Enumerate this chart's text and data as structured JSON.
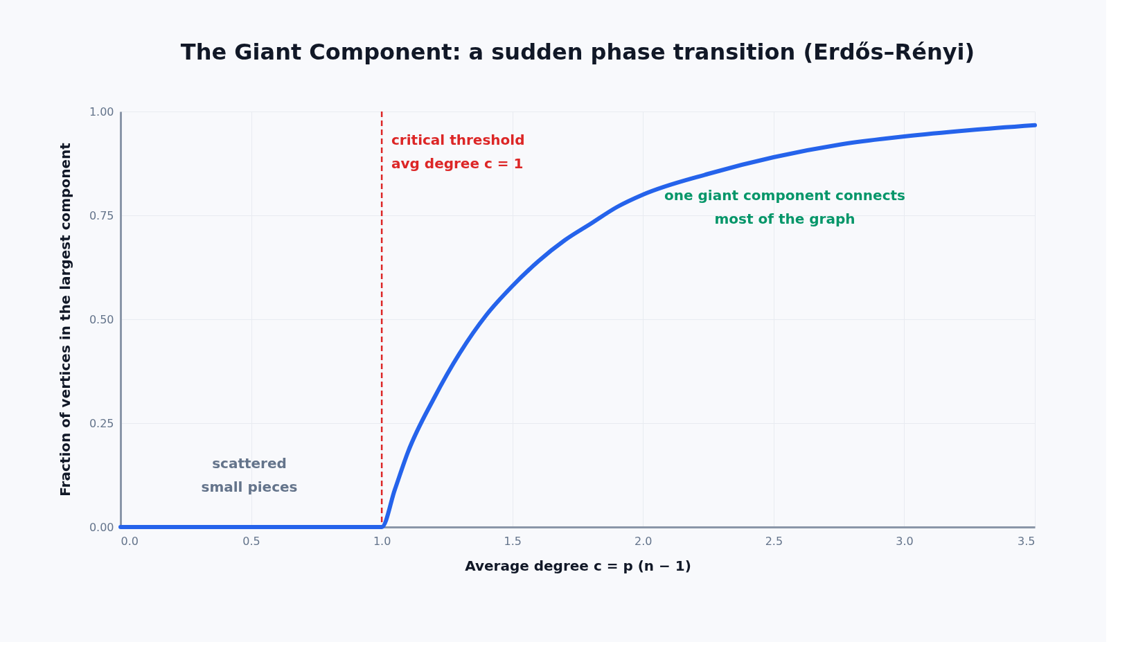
{
  "chart_data": {
    "type": "line",
    "title": "The Giant Component: a sudden phase transition (Erdős–Rényi)",
    "xlabel": "Average degree  c = p (n − 1)",
    "ylabel": "Fraction of vertices in the largest component",
    "x": [
      0,
      0.5,
      1.0,
      1.05,
      1.1,
      1.2,
      1.3,
      1.4,
      1.5,
      1.6,
      1.7,
      1.8,
      1.9,
      2.0,
      2.25,
      2.5,
      2.75,
      3.0,
      3.25,
      3.5
    ],
    "series": [
      {
        "color": "#2563eb",
        "values": [
          0,
          0,
          0,
          0.09,
          0.18,
          0.31,
          0.42,
          0.51,
          0.58,
          0.64,
          0.69,
          0.73,
          0.77,
          0.8,
          0.85,
          0.89,
          0.92,
          0.94,
          0.955,
          0.967
        ]
      }
    ],
    "xlim": [
      0,
      3.5
    ],
    "xticks": [
      {
        "value": 0,
        "label": "0.0"
      },
      0.5,
      {
        "value": 1,
        "label": "1.0"
      },
      1.5,
      {
        "value": 2,
        "label": "2.0"
      },
      2.5,
      {
        "value": 3,
        "label": "3.0"
      },
      3.5
    ],
    "ylim": [
      0,
      1
    ],
    "yticks": [
      {
        "value": 0,
        "label": "0.00"
      },
      {
        "value": 0.25,
        "label": "0.25"
      },
      {
        "value": 0.5,
        "label": "0.50"
      },
      {
        "value": 0.75,
        "label": "0.75"
      },
      {
        "value": 1,
        "label": "1.00"
      }
    ],
    "grid": true,
    "marker": "none",
    "line_style": "solid",
    "ref_lines": [
      {
        "axis": "x",
        "value": 1,
        "color": "#dc2626",
        "line_style": "dashed"
      }
    ],
    "annotations": [
      "critical threshold\navg degree c = 1",
      "one giant component connects\nmost of the graph",
      "scattered\nsmall pieces"
    ]
  }
}
